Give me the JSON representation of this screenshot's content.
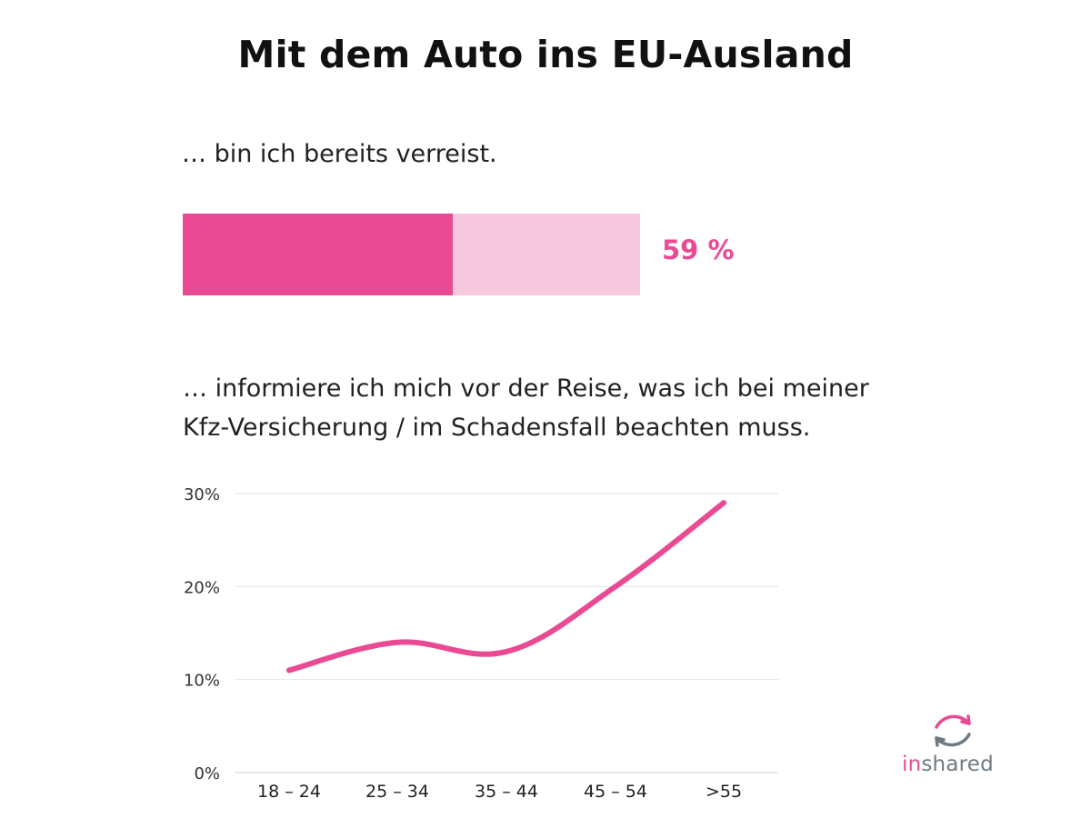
{
  "title": "Mit dem Auto ins EU-Ausland",
  "section1": {
    "text": "… bin ich bereits verreist.",
    "value": 59,
    "value_label": "59 %",
    "colors": {
      "fill": "#ea4a93",
      "track": "#f8c8de"
    }
  },
  "section2": {
    "line1": " … informiere ich mich vor der Reise, was ich bei meiner",
    "line2": "Kfz-Versicherung / im Schadensfall beachten muss."
  },
  "chart_data": {
    "type": "line",
    "categories": [
      "18 – 24",
      "25 – 34",
      "35 – 44",
      "45 – 54",
      ">55"
    ],
    "values": [
      11,
      14,
      13,
      20,
      29
    ],
    "ylim": [
      0,
      30
    ],
    "yticks": [
      0,
      10,
      20,
      30
    ],
    "ytick_labels": [
      "0%",
      "10%",
      "20%",
      "30%"
    ],
    "grid": true,
    "line_color": "#ea4a93",
    "grid_color": "#e6e6e6"
  },
  "logo": {
    "text_in": "in",
    "text_shared": "shared",
    "colors": {
      "pink": "#ea4a93",
      "gray": "#6f7a82"
    },
    "icon": "refresh-cycle-icon"
  }
}
